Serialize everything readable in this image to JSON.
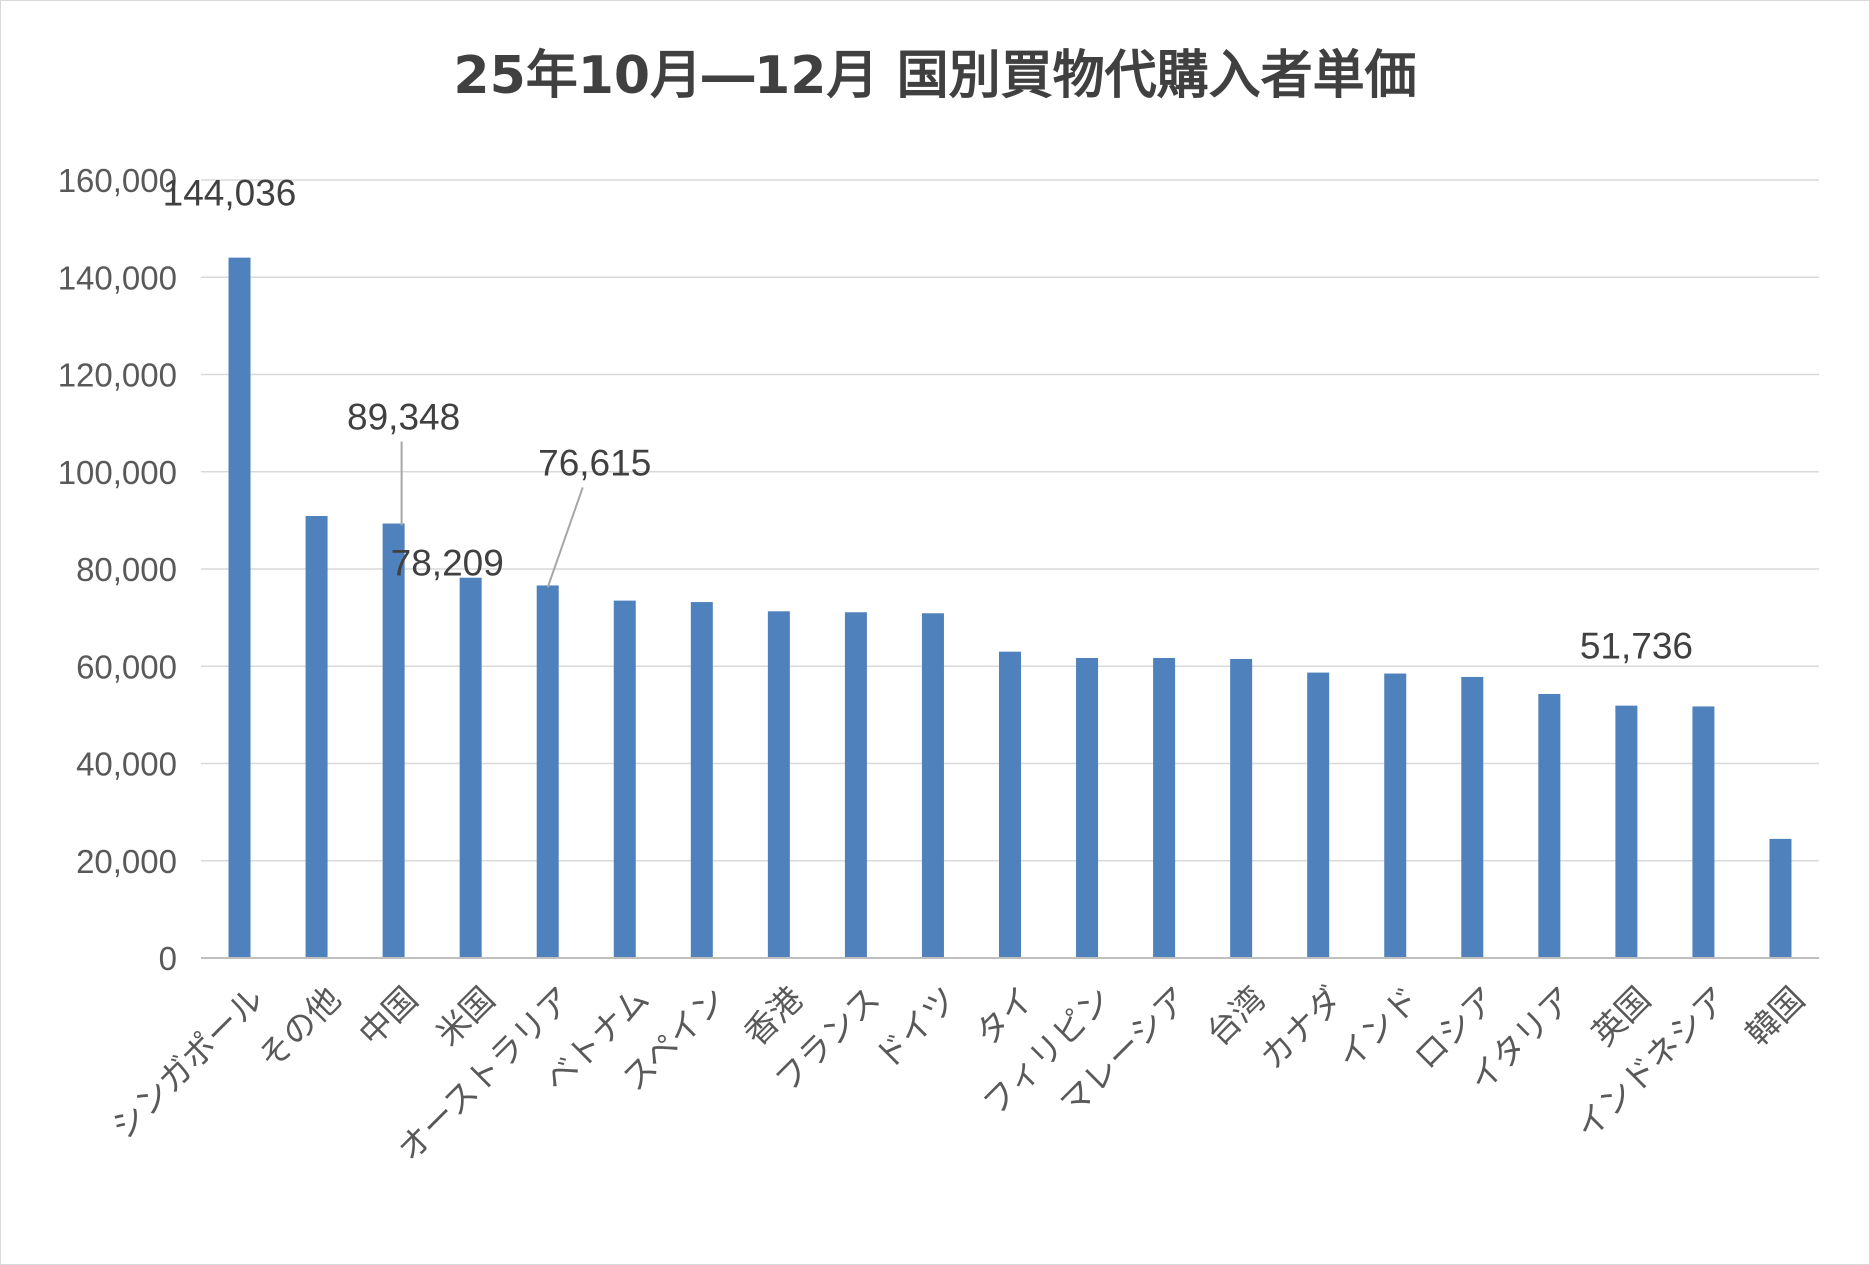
{
  "chart_data": {
    "type": "bar",
    "title": "25年10月―12月 国別買物代購入者単価",
    "xlabel": "",
    "ylabel": "",
    "ylim": [
      0,
      160000
    ],
    "y_ticks": [
      "0",
      "20,000",
      "40,000",
      "60,000",
      "80,000",
      "100,000",
      "120,000",
      "140,000",
      "160,000"
    ],
    "grid": true,
    "legend": "none",
    "bar_color": "#4f81bd",
    "categories": [
      "シンガポール",
      "その他",
      "中国",
      "米国",
      "オーストラリア",
      "ベトナム",
      "スペイン",
      "香港",
      "フランス",
      "ドイツ",
      "タイ",
      "フィリピン",
      "マレーシア",
      "台湾",
      "カナダ",
      "インド",
      "ロシア",
      "イタリア",
      "英国",
      "インドネシア",
      "韓国"
    ],
    "values": [
      144036,
      90900,
      89348,
      78209,
      76615,
      73500,
      73200,
      71300,
      71100,
      70900,
      63000,
      61700,
      61700,
      61500,
      58700,
      58500,
      57800,
      54300,
      51900,
      51736,
      24500
    ],
    "data_labels": [
      {
        "category": "シンガポール",
        "text": "144,036"
      },
      {
        "category": "中国",
        "text": "89,348"
      },
      {
        "category": "米国",
        "text": "78,209"
      },
      {
        "category": "オーストラリア",
        "text": "76,615"
      },
      {
        "category": "インドネシア",
        "text": "51,736"
      }
    ]
  }
}
